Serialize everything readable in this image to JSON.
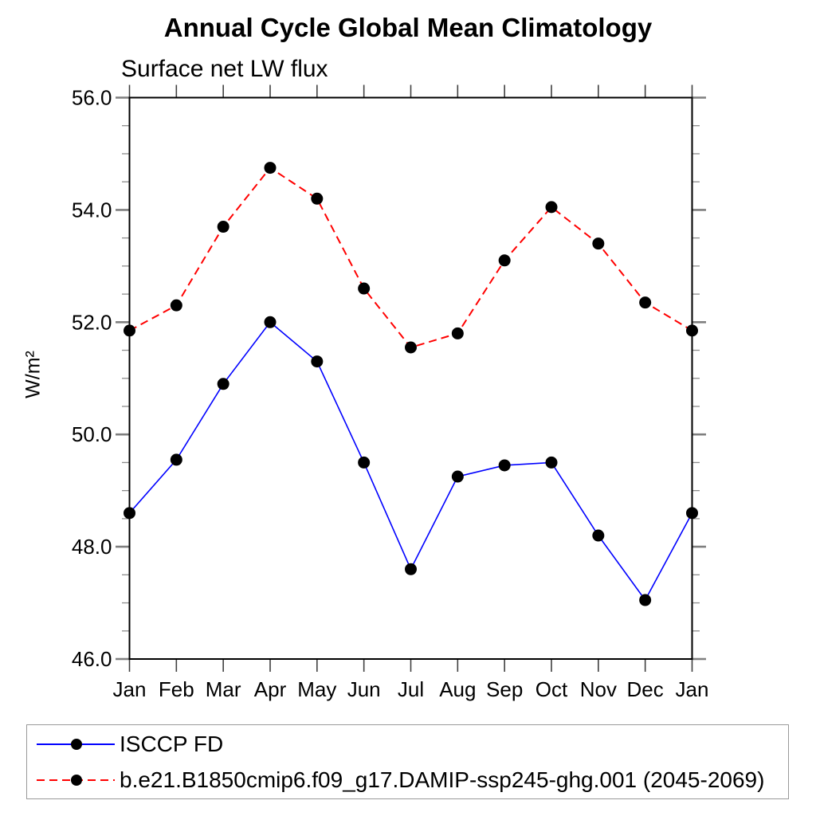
{
  "chart_data": {
    "type": "line",
    "title": "Annual Cycle Global Mean Climatology",
    "subtitle": "Surface net LW flux",
    "ylabel": "W/m²",
    "xlabel": "",
    "categories": [
      "Jan",
      "Feb",
      "Mar",
      "Apr",
      "May",
      "Jun",
      "Jul",
      "Aug",
      "Sep",
      "Oct",
      "Nov",
      "Dec",
      "Jan"
    ],
    "series": [
      {
        "name": "ISCCP FD",
        "color": "#0000ff",
        "line_style": "solid",
        "marker": "filled-circle",
        "marker_color": "#000000",
        "values": [
          48.6,
          49.55,
          50.9,
          52.0,
          51.3,
          49.5,
          47.6,
          49.25,
          49.45,
          49.5,
          48.2,
          47.05,
          48.6
        ]
      },
      {
        "name": "b.e21.B1850cmip6.f09_g17.DAMIP-ssp245-ghg.001 (2045-2069)",
        "color": "#ff0000",
        "line_style": "dashed",
        "marker": "filled-circle",
        "marker_color": "#000000",
        "values": [
          51.85,
          52.3,
          53.7,
          54.75,
          54.2,
          52.6,
          51.55,
          51.8,
          53.1,
          54.05,
          53.4,
          52.35,
          51.85
        ]
      }
    ],
    "ylim": [
      46.0,
      56.0
    ],
    "yticks_major": [
      46.0,
      48.0,
      50.0,
      52.0,
      54.0,
      56.0
    ],
    "ytick_labels": [
      "46.0",
      "48.0",
      "50.0",
      "52.0",
      "54.0",
      "56.0"
    ],
    "ytick_minor_step": 0.5,
    "grid": "off",
    "legend_position": "bottom-left"
  },
  "colors": {
    "axis_box": "#000000",
    "major_tick": "#7f7f7f",
    "minor_tick": "#8c8c8c",
    "month_tick": "#404040",
    "legend_border": "#999999"
  }
}
